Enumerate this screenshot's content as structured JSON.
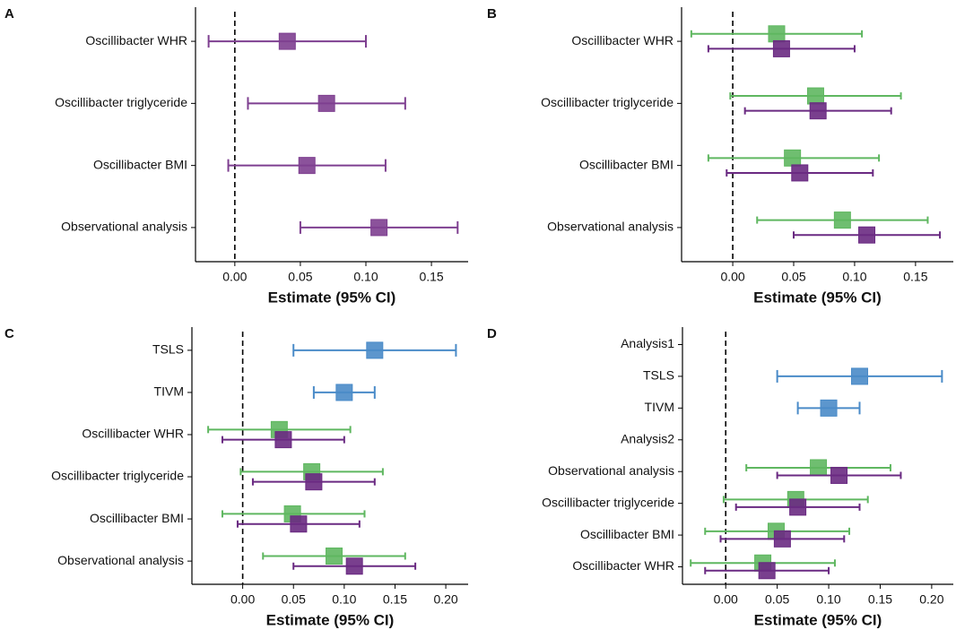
{
  "chart_data": [
    {
      "type": "forest",
      "panel": "A",
      "x_label": "Estimate (95% CI)",
      "categories": [
        "Oscillibacter WHR",
        "Oscillibacter triglyceride",
        "Oscillibacter BMI",
        "Observational analysis"
      ],
      "series": [
        {
          "color": "#7e3f90",
          "values": [
            0.04,
            0.07,
            0.055,
            0.11
          ],
          "lower": [
            -0.02,
            0.01,
            -0.005,
            0.05
          ],
          "upper": [
            0.1,
            0.13,
            0.115,
            0.17
          ]
        }
      ],
      "xlim": [
        -0.03,
        0.178
      ],
      "reference_line": 0,
      "xticks": [
        {
          "value": 0,
          "label": "0.00"
        },
        {
          "value": 0.05,
          "label": "0.05"
        },
        {
          "value": 0.1,
          "label": "0.10"
        },
        {
          "value": 0.15,
          "label": "0.15"
        }
      ]
    },
    {
      "type": "forest",
      "panel": "B",
      "x_label": "Estimate (95% CI)",
      "categories": [
        "Oscillibacter WHR",
        "Oscillibacter triglyceride",
        "Oscillibacter BMI",
        "Observational analysis"
      ],
      "series": [
        {
          "color": "#5fb760",
          "values": [
            0.036,
            0.068,
            0.049,
            0.09
          ],
          "lower": [
            -0.034,
            -0.002,
            -0.02,
            0.02
          ],
          "upper": [
            0.106,
            0.138,
            0.12,
            0.16
          ]
        },
        {
          "color": "#6a2a82",
          "values": [
            0.04,
            0.07,
            0.055,
            0.11
          ],
          "lower": [
            -0.02,
            0.01,
            -0.005,
            0.05
          ],
          "upper": [
            0.1,
            0.13,
            0.115,
            0.17
          ]
        }
      ],
      "xlim": [
        -0.042,
        0.181
      ],
      "reference_line": 0,
      "xticks": [
        {
          "value": 0,
          "label": "0.00"
        },
        {
          "value": 0.05,
          "label": "0.05"
        },
        {
          "value": 0.1,
          "label": "0.10"
        },
        {
          "value": 0.15,
          "label": "0.15"
        }
      ]
    },
    {
      "type": "forest",
      "panel": "C",
      "x_label": "Estimate (95% CI)",
      "categories": [
        "TSLS",
        "TIVM",
        "Oscillibacter WHR",
        "Oscillibacter triglyceride",
        "Oscillibacter BMI",
        "Observational analysis"
      ],
      "series": [
        {
          "color": "#4a8bc8",
          "values": [
            0.13,
            0.1,
            null,
            null,
            null,
            null
          ],
          "lower": [
            0.05,
            0.07,
            null,
            null,
            null,
            null
          ],
          "upper": [
            0.21,
            0.13,
            null,
            null,
            null,
            null
          ]
        },
        {
          "color": "#5fb760",
          "values": [
            null,
            null,
            0.036,
            0.068,
            0.049,
            0.09
          ],
          "lower": [
            null,
            null,
            -0.034,
            -0.002,
            -0.02,
            0.02
          ],
          "upper": [
            null,
            null,
            0.106,
            0.138,
            0.12,
            0.16
          ]
        },
        {
          "color": "#6a2a82",
          "values": [
            null,
            null,
            0.04,
            0.07,
            0.055,
            0.11
          ],
          "lower": [
            null,
            null,
            -0.02,
            0.01,
            -0.005,
            0.05
          ],
          "upper": [
            null,
            null,
            0.1,
            0.13,
            0.115,
            0.17
          ]
        }
      ],
      "xlim": [
        -0.05,
        0.222
      ],
      "reference_line": 0,
      "xticks": [
        {
          "value": 0,
          "label": "0.00"
        },
        {
          "value": 0.05,
          "label": "0.05"
        },
        {
          "value": 0.1,
          "label": "0.10"
        },
        {
          "value": 0.15,
          "label": "0.15"
        },
        {
          "value": 0.2,
          "label": "0.20"
        }
      ]
    },
    {
      "type": "forest",
      "panel": "D",
      "x_label": "Estimate (95% CI)",
      "categories": [
        "Analysis1",
        "TSLS",
        "TIVM",
        "Analysis2",
        "Observational analysis",
        "Oscillibacter triglyceride",
        "Oscillibacter BMI",
        "Oscillibacter WHR"
      ],
      "series": [
        {
          "color": "#4a8bc8",
          "values": [
            null,
            0.13,
            0.1,
            null,
            null,
            null,
            null,
            null
          ],
          "lower": [
            null,
            0.05,
            0.07,
            null,
            null,
            null,
            null,
            null
          ],
          "upper": [
            null,
            0.21,
            0.13,
            null,
            null,
            null,
            null,
            null
          ]
        },
        {
          "color": "#5fb760",
          "values": [
            null,
            null,
            null,
            null,
            0.09,
            0.068,
            0.049,
            0.036
          ],
          "lower": [
            null,
            null,
            null,
            null,
            0.02,
            -0.002,
            -0.02,
            -0.034
          ],
          "upper": [
            null,
            null,
            null,
            null,
            0.16,
            0.138,
            0.12,
            0.106
          ]
        },
        {
          "color": "#6a2a82",
          "values": [
            null,
            null,
            null,
            null,
            0.11,
            0.07,
            0.055,
            0.04
          ],
          "lower": [
            null,
            null,
            null,
            null,
            0.05,
            0.01,
            -0.005,
            -0.02
          ],
          "upper": [
            null,
            null,
            null,
            null,
            0.17,
            0.13,
            0.115,
            0.1
          ]
        }
      ],
      "xlim": [
        -0.042,
        0.221
      ],
      "reference_line": 0,
      "xticks": [
        {
          "value": 0,
          "label": "0.00"
        },
        {
          "value": 0.05,
          "label": "0.05"
        },
        {
          "value": 0.1,
          "label": "0.10"
        },
        {
          "value": 0.15,
          "label": "0.15"
        },
        {
          "value": 0.2,
          "label": "0.20"
        }
      ]
    }
  ]
}
